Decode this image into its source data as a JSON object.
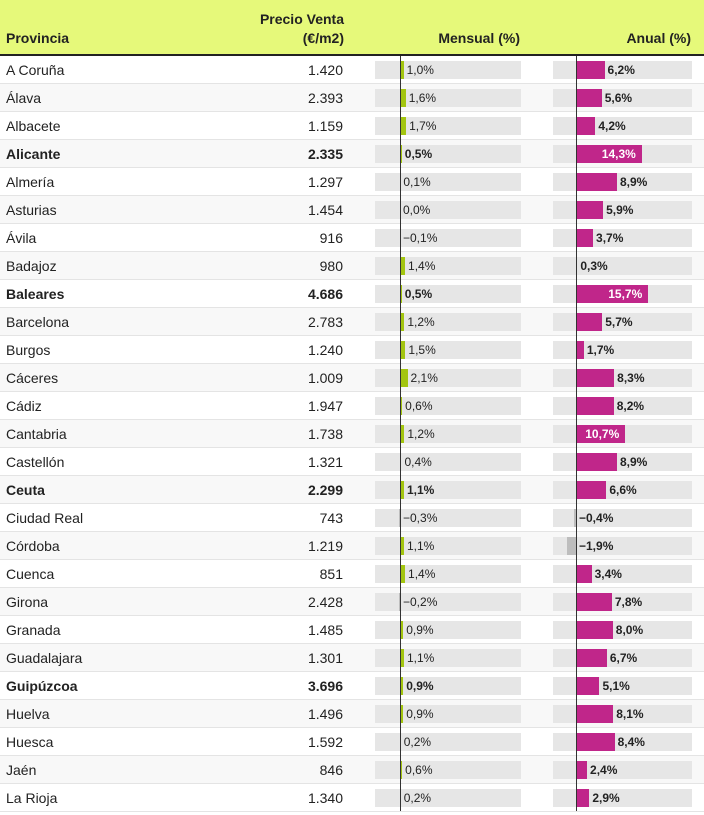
{
  "header": {
    "provincia": "Provincia",
    "precio_line1": "Precio Venta",
    "precio_line2": "(€/m2)",
    "mensual": "Mensual (%)",
    "anual": "Anual (%)"
  },
  "colors": {
    "header_bg": "#e6f97a",
    "mensual_bar": "#a3c510",
    "anual_bar": "#c0268a",
    "negative_bar": "#bdbdbd",
    "track": "#e6e6e6"
  },
  "chart_data": {
    "type": "table",
    "columns": [
      "Provincia",
      "Precio Venta (€/m2)",
      "Mensual (%)",
      "Anual (%)"
    ],
    "rows": [
      {
        "provincia": "A Coruña",
        "bold": false,
        "precio": "1.420",
        "mensual": 1.0,
        "mensual_label": "1,0%",
        "anual": 6.2,
        "anual_label": "6,2%"
      },
      {
        "provincia": "Álava",
        "bold": false,
        "precio": "2.393",
        "mensual": 1.6,
        "mensual_label": "1,6%",
        "anual": 5.6,
        "anual_label": "5,6%"
      },
      {
        "provincia": "Albacete",
        "bold": false,
        "precio": "1.159",
        "mensual": 1.7,
        "mensual_label": "1,7%",
        "anual": 4.2,
        "anual_label": "4,2%"
      },
      {
        "provincia": "Alicante",
        "bold": true,
        "precio": "2.335",
        "mensual": 0.5,
        "mensual_label": "0,5%",
        "anual": 14.3,
        "anual_label": "14,3%"
      },
      {
        "provincia": "Almería",
        "bold": false,
        "precio": "1.297",
        "mensual": 0.1,
        "mensual_label": "0,1%",
        "anual": 8.9,
        "anual_label": "8,9%"
      },
      {
        "provincia": "Asturias",
        "bold": false,
        "precio": "1.454",
        "mensual": 0.0,
        "mensual_label": "0,0%",
        "anual": 5.9,
        "anual_label": "5,9%"
      },
      {
        "provincia": "Ávila",
        "bold": false,
        "precio": "916",
        "mensual": -0.1,
        "mensual_label": "−0,1%",
        "anual": 3.7,
        "anual_label": "3,7%"
      },
      {
        "provincia": "Badajoz",
        "bold": false,
        "precio": "980",
        "mensual": 1.4,
        "mensual_label": "1,4%",
        "anual": 0.3,
        "anual_label": "0,3%"
      },
      {
        "provincia": "Baleares",
        "bold": true,
        "precio": "4.686",
        "mensual": 0.5,
        "mensual_label": "0,5%",
        "anual": 15.7,
        "anual_label": "15,7%"
      },
      {
        "provincia": "Barcelona",
        "bold": false,
        "precio": "2.783",
        "mensual": 1.2,
        "mensual_label": "1,2%",
        "anual": 5.7,
        "anual_label": "5,7%"
      },
      {
        "provincia": "Burgos",
        "bold": false,
        "precio": "1.240",
        "mensual": 1.5,
        "mensual_label": "1,5%",
        "anual": 1.7,
        "anual_label": "1,7%"
      },
      {
        "provincia": "Cáceres",
        "bold": false,
        "precio": "1.009",
        "mensual": 2.1,
        "mensual_label": "2,1%",
        "anual": 8.3,
        "anual_label": "8,3%"
      },
      {
        "provincia": "Cádiz",
        "bold": false,
        "precio": "1.947",
        "mensual": 0.6,
        "mensual_label": "0,6%",
        "anual": 8.2,
        "anual_label": "8,2%"
      },
      {
        "provincia": "Cantabria",
        "bold": false,
        "precio": "1.738",
        "mensual": 1.2,
        "mensual_label": "1,2%",
        "anual": 10.7,
        "anual_label": "10,7%"
      },
      {
        "provincia": "Castellón",
        "bold": false,
        "precio": "1.321",
        "mensual": 0.4,
        "mensual_label": "0,4%",
        "anual": 8.9,
        "anual_label": "8,9%"
      },
      {
        "provincia": "Ceuta",
        "bold": true,
        "precio": "2.299",
        "mensual": 1.1,
        "mensual_label": "1,1%",
        "anual": 6.6,
        "anual_label": "6,6%"
      },
      {
        "provincia": "Ciudad Real",
        "bold": false,
        "precio": "743",
        "mensual": -0.3,
        "mensual_label": "−0,3%",
        "anual": -0.4,
        "anual_label": "−0,4%"
      },
      {
        "provincia": "Córdoba",
        "bold": false,
        "precio": "1.219",
        "mensual": 1.1,
        "mensual_label": "1,1%",
        "anual": -1.9,
        "anual_label": "−1,9%"
      },
      {
        "provincia": "Cuenca",
        "bold": false,
        "precio": "851",
        "mensual": 1.4,
        "mensual_label": "1,4%",
        "anual": 3.4,
        "anual_label": "3,4%"
      },
      {
        "provincia": "Girona",
        "bold": false,
        "precio": "2.428",
        "mensual": -0.2,
        "mensual_label": "−0,2%",
        "anual": 7.8,
        "anual_label": "7,8%"
      },
      {
        "provincia": "Granada",
        "bold": false,
        "precio": "1.485",
        "mensual": 0.9,
        "mensual_label": "0,9%",
        "anual": 8.0,
        "anual_label": "8,0%"
      },
      {
        "provincia": "Guadalajara",
        "bold": false,
        "precio": "1.301",
        "mensual": 1.1,
        "mensual_label": "1,1%",
        "anual": 6.7,
        "anual_label": "6,7%"
      },
      {
        "provincia": "Guipúzcoa",
        "bold": true,
        "precio": "3.696",
        "mensual": 0.9,
        "mensual_label": "0,9%",
        "anual": 5.1,
        "anual_label": "5,1%"
      },
      {
        "provincia": "Huelva",
        "bold": false,
        "precio": "1.496",
        "mensual": 0.9,
        "mensual_label": "0,9%",
        "anual": 8.1,
        "anual_label": "8,1%"
      },
      {
        "provincia": "Huesca",
        "bold": false,
        "precio": "1.592",
        "mensual": 0.2,
        "mensual_label": "0,2%",
        "anual": 8.4,
        "anual_label": "8,4%"
      },
      {
        "provincia": "Jaén",
        "bold": false,
        "precio": "846",
        "mensual": 0.6,
        "mensual_label": "0,6%",
        "anual": 2.4,
        "anual_label": "2,4%"
      },
      {
        "provincia": "La Rioja",
        "bold": false,
        "precio": "1.340",
        "mensual": 0.2,
        "mensual_label": "0,2%",
        "anual": 2.9,
        "anual_label": "2,9%"
      }
    ]
  }
}
